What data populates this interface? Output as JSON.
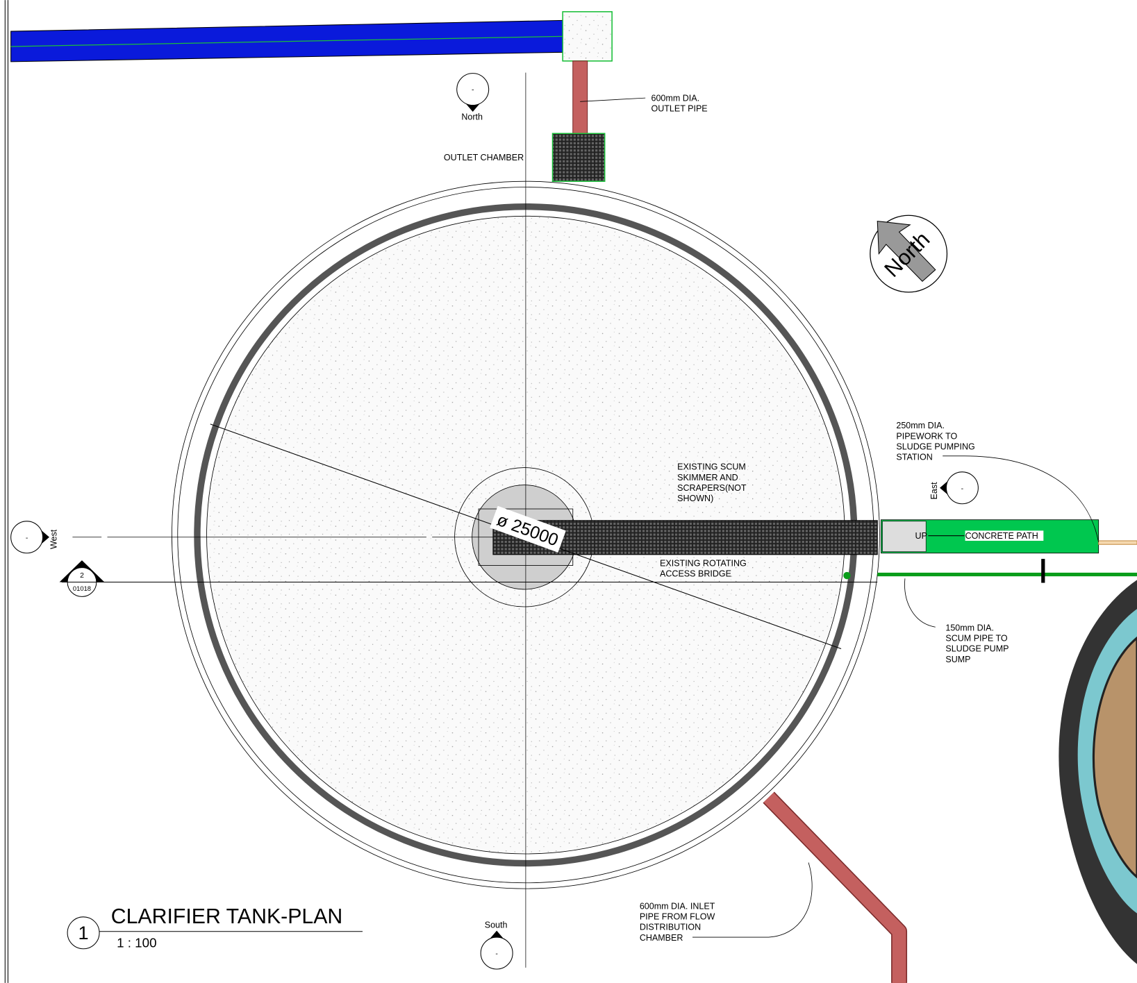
{
  "title": "CLARIFIER TANK-PLAN",
  "view_number": "1",
  "scale": "1 : 100",
  "dimension": "ø 25000",
  "north_arrow": "North",
  "elevation_markers": {
    "north": {
      "label": "North",
      "ref": "-"
    },
    "south": {
      "label": "South",
      "ref": "-"
    },
    "east": {
      "label": "East",
      "ref": "-"
    },
    "west": {
      "label": "West",
      "ref": "-"
    }
  },
  "section_marker": {
    "number": "2",
    "sheet": "01018"
  },
  "labels": {
    "outlet_chamber": "OUTLET CHAMBER",
    "concrete_path": "CONCRETE PATH",
    "stair": "UP"
  },
  "annotations": [
    {
      "lines": [
        "600mm DIA.",
        "OUTLET PIPE"
      ]
    },
    {
      "lines": [
        "250mm DIA.",
        "PIPEWORK TO",
        "SLUDGE PUMPING",
        "STATION"
      ]
    },
    {
      "lines": [
        "EXISTING SCUM",
        "SKIMMER AND",
        "SCRAPERS(NOT",
        "SHOWN)"
      ]
    },
    {
      "lines": [
        "EXISTING ROTATING",
        "ACCESS BRIDGE"
      ]
    },
    {
      "lines": [
        "150mm DIA.",
        "SCUM PIPE TO",
        "SLUDGE PUMP",
        "SUMP"
      ]
    },
    {
      "lines": [
        "600mm DIA. INLET",
        "PIPE FROM FLOW",
        "DISTRIBUTION",
        "CHAMBER"
      ]
    }
  ]
}
